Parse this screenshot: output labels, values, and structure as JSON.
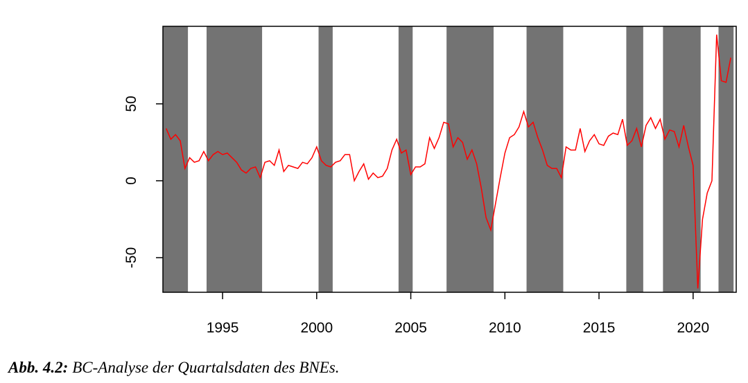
{
  "chart_data": {
    "type": "line",
    "caption_label": "Abb. 4.2:",
    "caption": "BC-Analyse der Quartalsdaten des BNEs.",
    "x": [
      1992,
      1992.25,
      1992.5,
      1992.75,
      1993,
      1993.25,
      1993.5,
      1993.75,
      1994,
      1994.25,
      1994.5,
      1994.75,
      1995,
      1995.25,
      1995.5,
      1995.75,
      1996,
      1996.25,
      1996.5,
      1996.75,
      1997,
      1997.25,
      1997.5,
      1997.75,
      1998,
      1998.25,
      1998.5,
      1998.75,
      1999,
      1999.25,
      1999.5,
      1999.75,
      2000,
      2000.25,
      2000.5,
      2000.75,
      2001,
      2001.25,
      2001.5,
      2001.75,
      2002,
      2002.25,
      2002.5,
      2002.75,
      2003,
      2003.25,
      2003.5,
      2003.75,
      2004,
      2004.25,
      2004.5,
      2004.75,
      2005,
      2005.25,
      2005.5,
      2005.75,
      2006,
      2006.25,
      2006.5,
      2006.75,
      2007,
      2007.25,
      2007.5,
      2007.75,
      2008,
      2008.25,
      2008.5,
      2008.75,
      2009,
      2009.25,
      2009.5,
      2009.75,
      2010,
      2010.25,
      2010.5,
      2010.75,
      2011,
      2011.25,
      2011.5,
      2011.75,
      2012,
      2012.25,
      2012.5,
      2012.75,
      2013,
      2013.25,
      2013.5,
      2013.75,
      2014,
      2014.25,
      2014.5,
      2014.75,
      2015,
      2015.25,
      2015.5,
      2015.75,
      2016,
      2016.25,
      2016.5,
      2016.75,
      2017,
      2017.25,
      2017.5,
      2017.75,
      2018,
      2018.25,
      2018.5,
      2018.75,
      2019,
      2019.25,
      2019.5,
      2019.75,
      2020,
      2020.25,
      2020.5,
      2020.75,
      2021,
      2021.25,
      2021.5,
      2021.75,
      2022
    ],
    "series": [
      {
        "color": "#ff0000",
        "values": [
          34,
          27,
          30,
          26,
          8,
          15,
          12,
          13,
          19,
          13,
          17,
          19,
          17,
          18,
          15,
          12,
          7,
          5,
          8,
          9,
          2,
          12,
          13,
          10,
          20,
          6,
          10,
          9,
          8,
          12,
          11,
          15,
          22,
          13,
          10,
          9,
          12,
          13,
          17,
          17,
          0,
          6,
          11,
          1,
          5,
          2,
          3,
          8,
          20,
          27,
          18,
          20,
          4,
          9,
          9,
          11,
          28,
          21,
          28,
          38,
          37,
          22,
          28,
          25,
          14,
          20,
          11,
          -5,
          -24,
          -32,
          -15,
          2,
          18,
          28,
          30,
          35,
          45,
          35,
          38,
          28,
          20,
          10,
          8,
          8,
          2,
          22,
          20,
          20,
          34,
          19,
          26,
          30,
          24,
          23,
          29,
          31,
          30,
          40,
          23,
          26,
          34,
          22,
          36,
          41,
          34,
          40,
          27,
          33,
          32,
          22,
          36,
          22,
          10,
          -70,
          -25,
          -8,
          0,
          95,
          65,
          64,
          80
        ]
      }
    ],
    "shaded_periods": [
      [
        1991.83,
        1993.16
      ],
      [
        1994.15,
        1997.1
      ],
      [
        2000.1,
        2000.85
      ],
      [
        2004.35,
        2005.1
      ],
      [
        2006.9,
        2009.4
      ],
      [
        2011.15,
        2013.1
      ],
      [
        2016.45,
        2017.35
      ],
      [
        2018.4,
        2020.4
      ],
      [
        2021.35,
        2022.15
      ]
    ],
    "shade_color": "#737373",
    "xlim": [
      1991.83,
      2022.29
    ],
    "ylim": [
      -72.5,
      100.4
    ],
    "xticks": [
      1995,
      2000,
      2005,
      2010,
      2015,
      2020
    ],
    "yticks": [
      -50,
      0,
      50
    ]
  }
}
